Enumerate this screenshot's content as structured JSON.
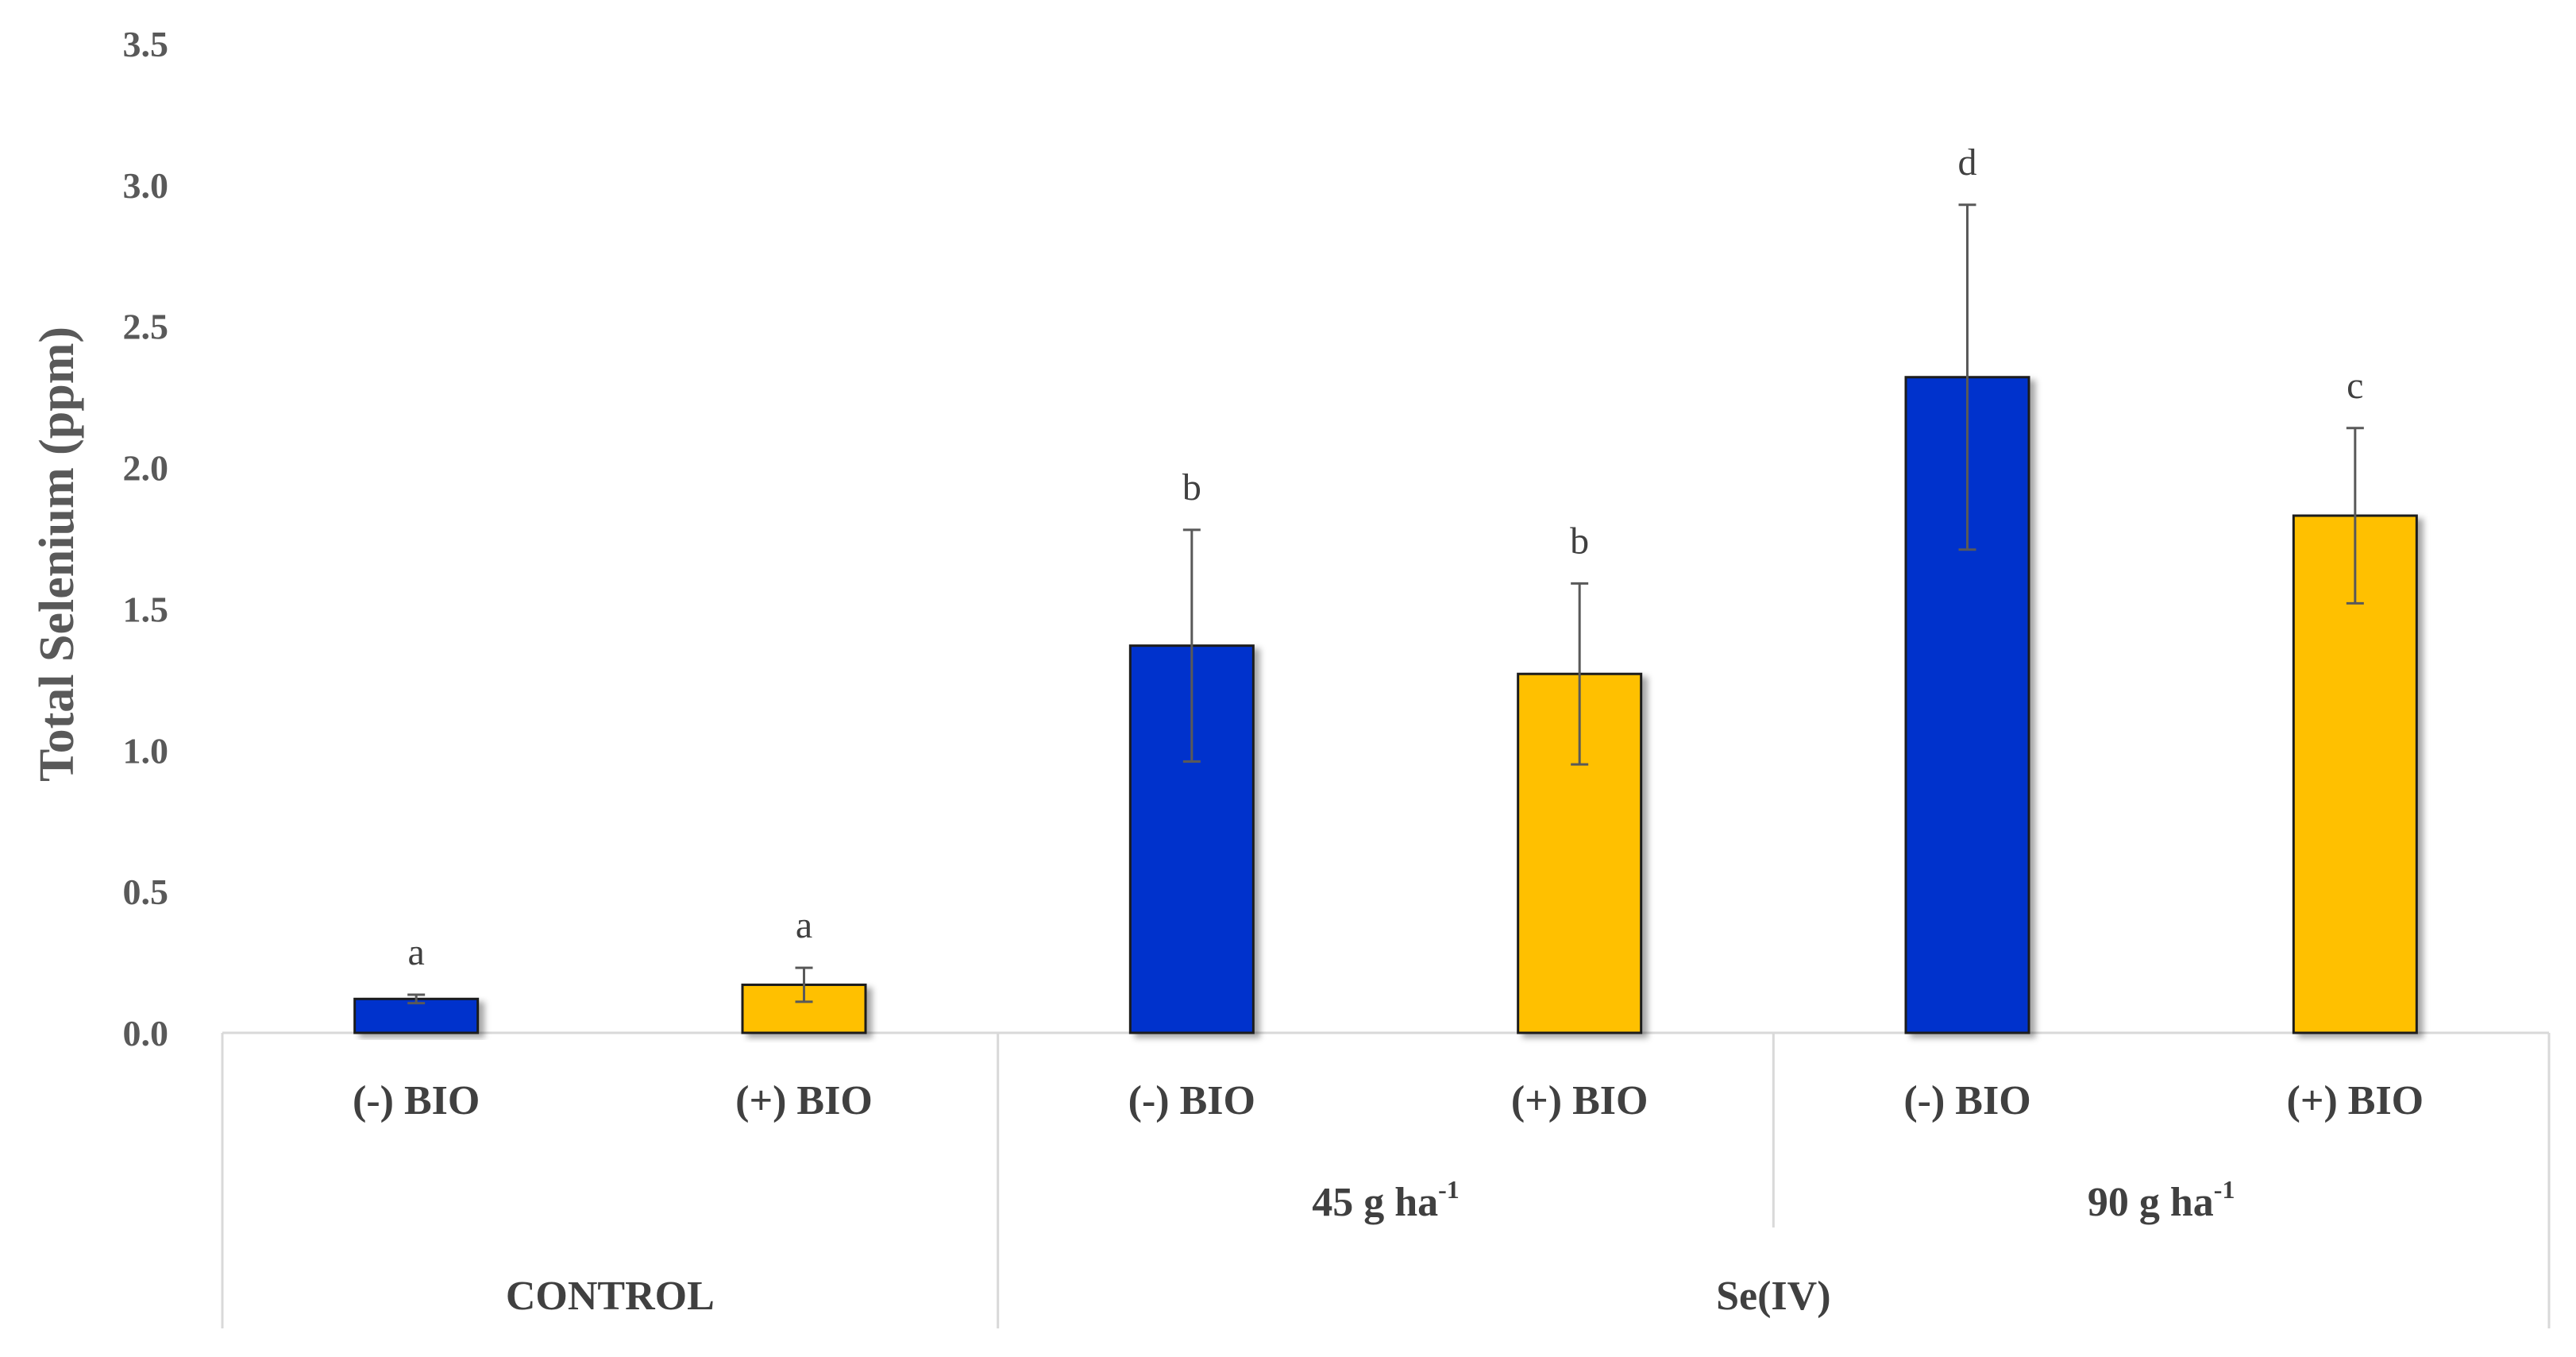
{
  "chart_data": {
    "type": "bar",
    "title": "",
    "ylabel": "Total Selenium (ppm)",
    "xlabel": "",
    "ylim": [
      0,
      3.5
    ],
    "yticks": [
      "0.0",
      "0.5",
      "1.0",
      "1.5",
      "2.0",
      "2.5",
      "3.0",
      "3.5"
    ],
    "grid": false,
    "colors": {
      "minus_bio": "#0033CC",
      "plus_bio": "#FFC000",
      "error": "#595959",
      "axis": "#D9D9D9"
    },
    "categories": [
      "(-) BIO",
      "(+) BIO",
      "(-) BIO",
      "(+) BIO",
      "(-) BIO",
      "(+) BIO"
    ],
    "bars": [
      {
        "label": "(-) BIO",
        "value": 0.12,
        "err": 0.015,
        "sig": "a",
        "color_key": "minus_bio"
      },
      {
        "label": "(+) BIO",
        "value": 0.17,
        "err": 0.06,
        "sig": "a",
        "color_key": "plus_bio"
      },
      {
        "label": "(-) BIO",
        "value": 1.37,
        "err": 0.41,
        "sig": "b",
        "color_key": "minus_bio"
      },
      {
        "label": "(+) BIO",
        "value": 1.27,
        "err": 0.32,
        "sig": "b",
        "color_key": "plus_bio"
      },
      {
        "label": "(-) BIO",
        "value": 2.32,
        "err": 0.61,
        "sig": "d",
        "color_key": "minus_bio"
      },
      {
        "label": "(+) BIO",
        "value": 1.83,
        "err": 0.31,
        "sig": "c",
        "color_key": "plus_bio"
      }
    ],
    "dose_groups": [
      {
        "base": "45 g ha",
        "sup": "-1"
      },
      {
        "base": "90 g ha",
        "sup": "-1"
      }
    ],
    "treatment_groups": [
      "CONTROL",
      "Se(IV)"
    ]
  }
}
